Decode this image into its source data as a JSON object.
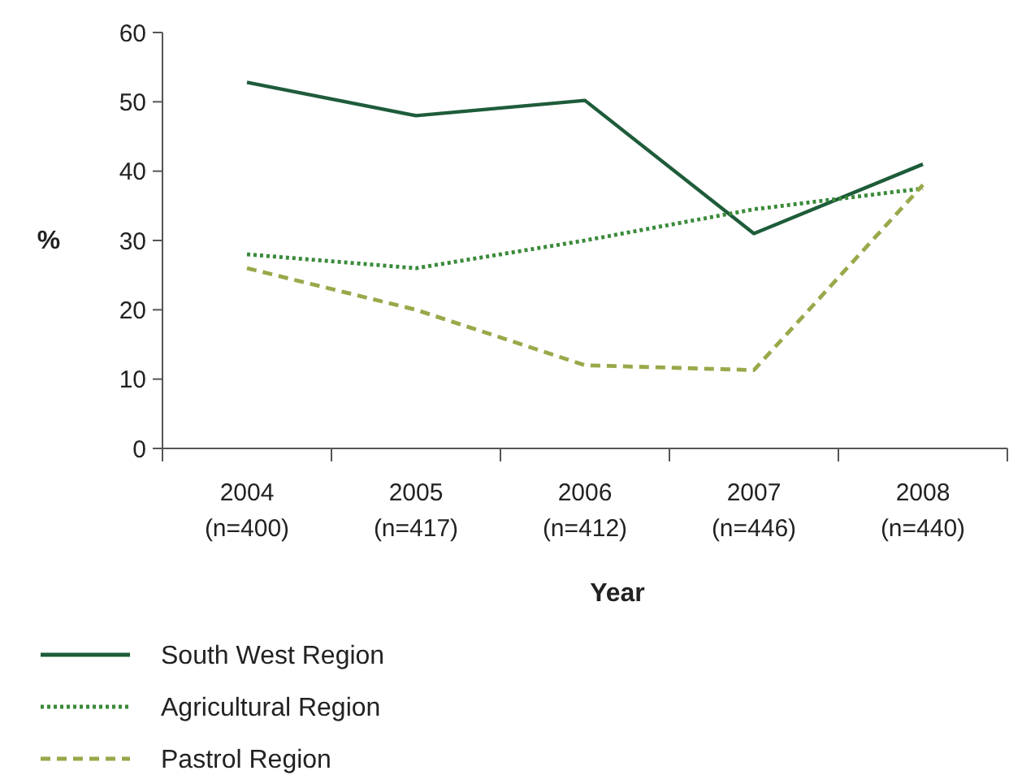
{
  "chart_data": {
    "type": "line",
    "xlabel": "Year",
    "ylabel": "%",
    "categories": [
      "2004\n(n=400)",
      "2005\n(n=417)",
      "2006\n(n=412)",
      "2007\n(n=446)",
      "2008\n(n=440)"
    ],
    "ylim": [
      0,
      60
    ],
    "yticks": [
      0,
      10,
      20,
      30,
      40,
      50,
      60
    ],
    "grid": false,
    "legend": "bottom",
    "series": [
      {
        "name": "South West Region",
        "color": "#1e5c3a",
        "line_style": "solid",
        "values": [
          52.8,
          48,
          50.2,
          31,
          41
        ]
      },
      {
        "name": "Agricultural Region",
        "color": "#3a8a3a",
        "line_style": "dotted",
        "values": [
          28,
          26,
          30,
          34.5,
          37.5
        ]
      },
      {
        "name": "Pastrol Region",
        "color": "#9aa84a",
        "line_style": "dashed",
        "values": [
          26,
          20,
          12,
          11.3,
          38
        ]
      }
    ]
  }
}
